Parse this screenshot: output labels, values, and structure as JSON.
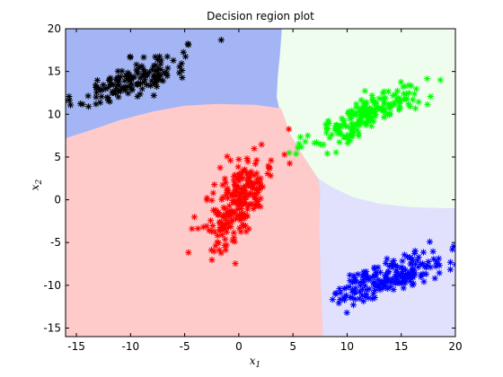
{
  "chart_data": {
    "type": "scatter",
    "title": "Decision region plot",
    "xlabel": "x",
    "xlabel_sub": "1",
    "ylabel": "x",
    "ylabel_sub": "2",
    "xlim": [
      -16,
      20
    ],
    "ylim": [
      -16,
      20
    ],
    "xticks": [
      -15,
      -10,
      -5,
      0,
      5,
      10,
      15,
      20
    ],
    "yticks": [
      -15,
      -10,
      -5,
      0,
      5,
      10,
      15,
      20
    ],
    "marker": "asterisk",
    "regions": [
      {
        "class": "black",
        "color": "#a3b5f5"
      },
      {
        "class": "green",
        "color": "#effdef"
      },
      {
        "class": "red",
        "color": "#ffcaca"
      },
      {
        "class": "blue",
        "color": "#e1e1fd"
      }
    ],
    "series": [
      {
        "color": "#000000",
        "center": [
          -10,
          14
        ],
        "spread": [
          2.6,
          1.6
        ],
        "corr": 0.75,
        "count": 150
      },
      {
        "color": "#00ff00",
        "center": [
          12,
          10
        ],
        "spread": [
          2.6,
          1.8
        ],
        "corr": 0.8,
        "count": 200
      },
      {
        "color": "#ff0000",
        "center": [
          0,
          0
        ],
        "spread": [
          1.6,
          3.0
        ],
        "corr": 0.7,
        "count": 250
      },
      {
        "color": "#0000ff",
        "center": [
          14,
          -9
        ],
        "spread": [
          2.6,
          1.5
        ],
        "corr": 0.75,
        "count": 200
      }
    ]
  }
}
